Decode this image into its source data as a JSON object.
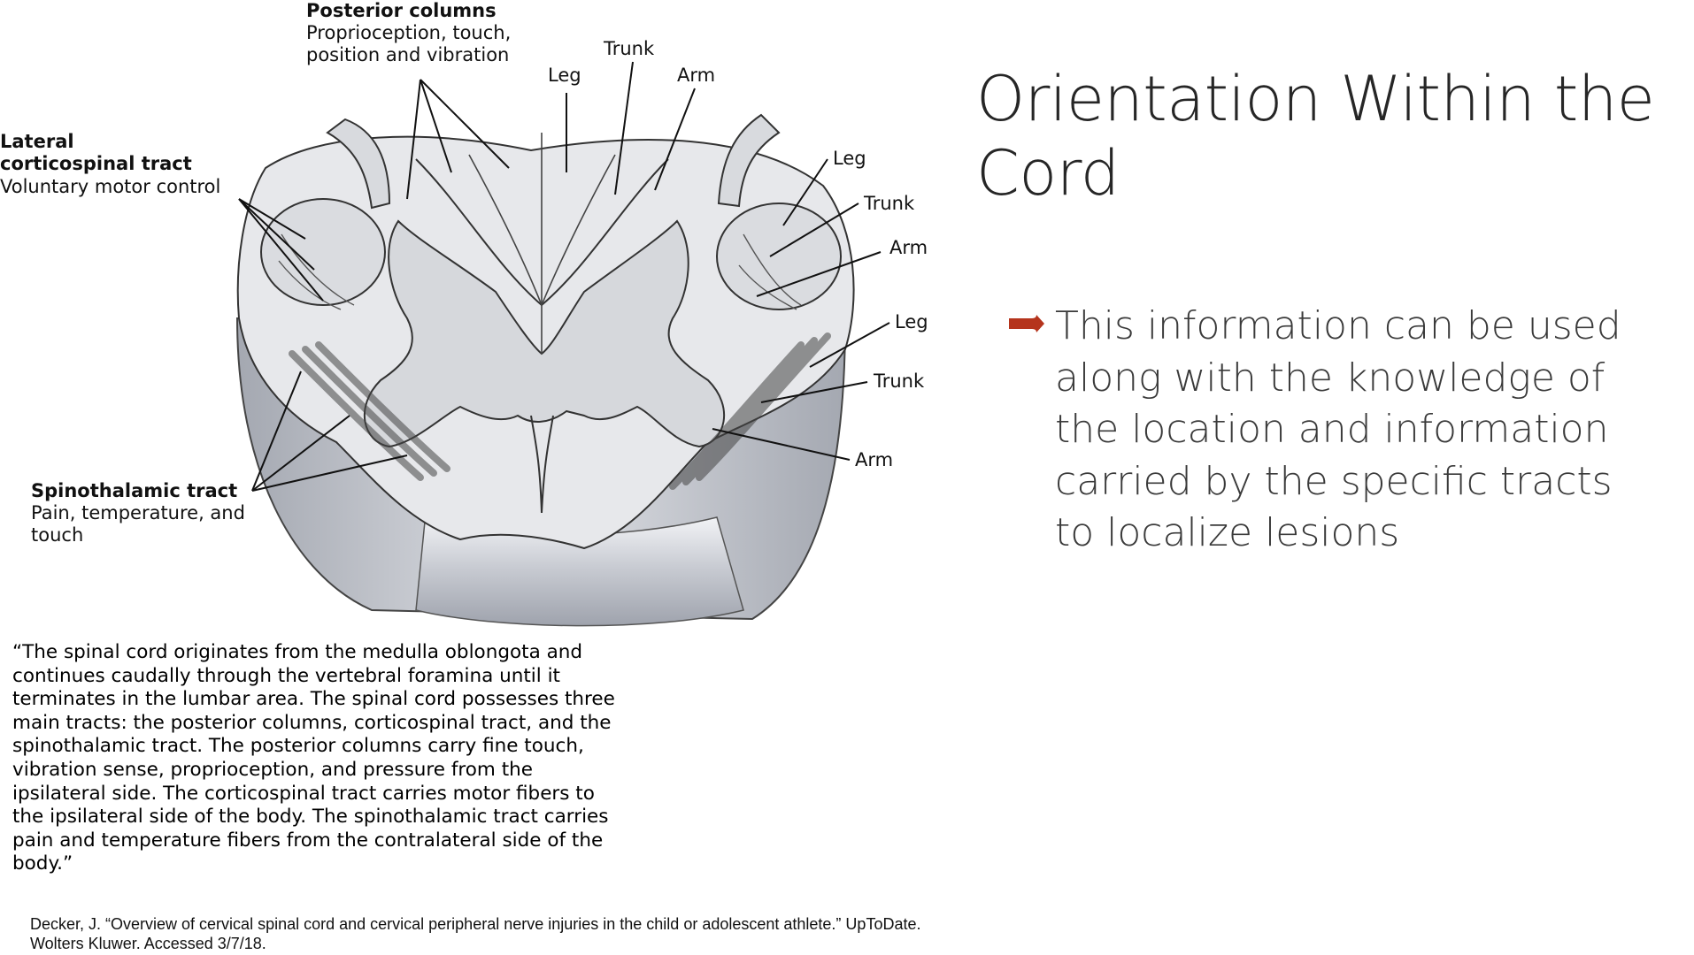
{
  "slide": {
    "title": "Orientation Within the Cord",
    "bullets": [
      "This information can be used along with the knowledge of the location and information carried by the specific tracts to localize lesions"
    ],
    "bullet_color": "#b5341c"
  },
  "diagram": {
    "posterior_columns": {
      "title": "Posterior columns",
      "line1": "Proprioception, touch,",
      "line2": "position and vibration"
    },
    "lateral_corticospinal": {
      "title1": "Lateral",
      "title2": "corticospinal tract",
      "desc": "Voluntary motor control"
    },
    "spinothalamic": {
      "title": "Spinothalamic tract",
      "line1": "Pain, temperature, and",
      "line2": "touch"
    },
    "top_labels": {
      "leg": "Leg",
      "trunk": "Trunk",
      "arm": "Arm"
    },
    "right_upper_labels": {
      "leg": "Leg",
      "trunk": "Trunk",
      "arm": "Arm"
    },
    "right_lower_labels": {
      "leg": "Leg",
      "trunk": "Trunk",
      "arm": "Arm"
    }
  },
  "quote": "“The spinal cord originates from the medulla oblongota and continues caudally through the vertebral foramina until it terminates in the lumbar area. The spinal cord possesses three main tracts: the posterior columns, corticospinal tract, and the spinothalamic tract. The posterior columns carry fine touch, vibration sense, proprioception, and pressure from the ipsilateral side. The corticospinal tract carries motor fibers to the ipsilateral side of the body. The spinothalamic tract carries pain and temperature fibers from the contralateral side of the body.”",
  "citation": {
    "line1": "Decker, J. “Overview of cervical spinal cord and cervical peripheral nerve injuries in the child or adolescent athlete.” UpToDate.",
    "line2": "Wolters Kluwer. Accessed 3/7/18."
  }
}
